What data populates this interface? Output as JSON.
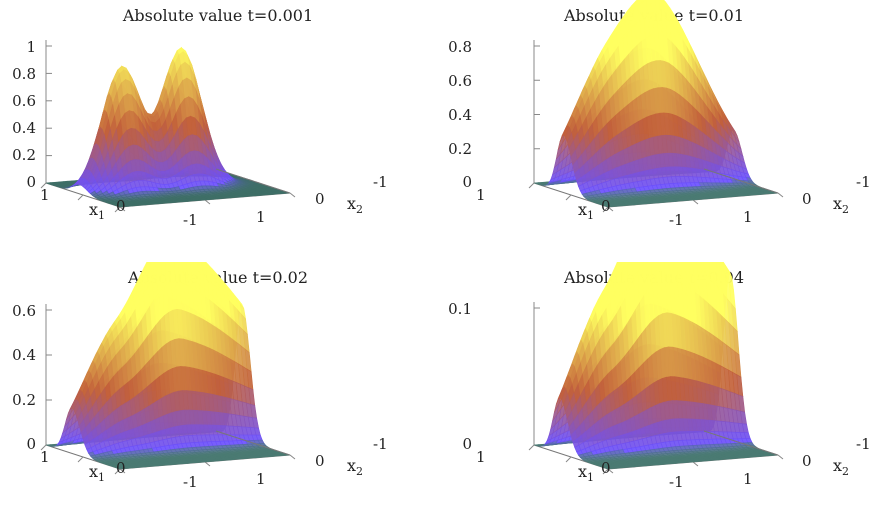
{
  "panels": [
    {
      "title": "Absolute value t=0.001",
      "z_ticks": [
        "1",
        "0.8",
        "0.6",
        "0.4",
        "0.2",
        "0"
      ],
      "x1_label": "x",
      "x1_sub": "1",
      "x2_label": "x",
      "x2_sub": "2",
      "x1_ticks": [
        "1",
        "0",
        "-1"
      ],
      "x2_ticks": [
        "1",
        "0",
        "-1"
      ]
    },
    {
      "title": "Absolute value t=0.01",
      "z_ticks": [
        "0.8",
        "0.6",
        "0.4",
        "0.2",
        "0"
      ],
      "x1_label": "x",
      "x1_sub": "1",
      "x2_label": "x",
      "x2_sub": "2",
      "x1_ticks": [
        "1",
        "0",
        "-1"
      ],
      "x2_ticks": [
        "1",
        "0",
        "-1"
      ]
    },
    {
      "title": "Absolute value t=0.02",
      "z_ticks": [
        "0.6",
        "0.4",
        "0.2",
        "0"
      ],
      "x1_label": "x",
      "x1_sub": "1",
      "x2_label": "x",
      "x2_sub": "2",
      "x1_ticks": [
        "1",
        "0",
        "-1"
      ],
      "x2_ticks": [
        "1",
        "0",
        "-1"
      ]
    },
    {
      "title": "Absolute value t=0.04",
      "z_ticks": [
        "0.1",
        "0"
      ],
      "x1_label": "x",
      "x1_sub": "1",
      "x2_label": "x",
      "x2_sub": "2",
      "x1_ticks": [
        "1",
        "0",
        "-1"
      ],
      "x2_ticks": [
        "1",
        "0",
        "-1"
      ]
    }
  ],
  "chart_data": [
    {
      "type": "surface",
      "title": "Absolute value t=0.001",
      "xlabel": "x1",
      "ylabel": "x2",
      "xlim": [
        -1,
        1
      ],
      "ylim": [
        -1,
        1
      ],
      "zlim": [
        0,
        1
      ],
      "peaks": [
        {
          "x1": 0.1,
          "x2": 0.5,
          "height": 0.9
        },
        {
          "x1": 0.1,
          "x2": -0.2,
          "height": 1.0
        }
      ],
      "colors": {
        "floor": "#3e6e66",
        "low": "#6a50ff",
        "mid": "#c2603a",
        "high": "#ffff60"
      }
    },
    {
      "type": "surface",
      "title": "Absolute value t=0.01",
      "xlabel": "x1",
      "ylabel": "x2",
      "xlim": [
        -1,
        1
      ],
      "ylim": [
        -1,
        1
      ],
      "zlim": [
        0,
        0.8
      ],
      "peaks": [
        {
          "x1": 0.2,
          "x2": 0.5,
          "height": 0.66
        },
        {
          "x1": 0.2,
          "x2": -0.2,
          "height": 0.77
        }
      ],
      "colors": {
        "floor": "#4a7a72",
        "low": "#6a50ff",
        "mid": "#c2603a",
        "high": "#ffff60"
      }
    },
    {
      "type": "surface",
      "title": "Absolute value t=0.02",
      "xlabel": "x1",
      "ylabel": "x2",
      "xlim": [
        -1,
        1
      ],
      "ylim": [
        -1,
        1
      ],
      "zlim": [
        0,
        0.6
      ],
      "peaks": [
        {
          "x1": 0.3,
          "x2": 0.5,
          "height": 0.47
        },
        {
          "x1": 0.3,
          "x2": -0.2,
          "height": 0.54
        }
      ],
      "colors": {
        "floor": "#4a7a72",
        "low": "#6a50ff",
        "mid": "#c2603a",
        "high": "#ffff60"
      }
    },
    {
      "type": "surface",
      "title": "Absolute value t=0.04",
      "xlabel": "x1",
      "ylabel": "x2",
      "xlim": [
        -1,
        1
      ],
      "ylim": [
        -1,
        1
      ],
      "zlim": [
        0,
        0.1
      ],
      "peaks": [
        {
          "x1": 0.3,
          "x2": 0.5,
          "height": 0.095
        },
        {
          "x1": 0.3,
          "x2": -0.2,
          "height": 0.11
        }
      ],
      "colors": {
        "floor": "#4a7a72",
        "low": "#6a50ff",
        "mid": "#c2603a",
        "high": "#ffff60"
      }
    }
  ]
}
